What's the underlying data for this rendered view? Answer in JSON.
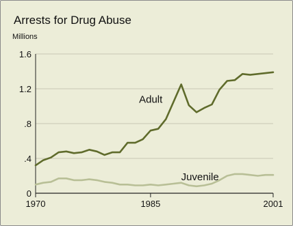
{
  "chart_data": {
    "type": "line",
    "title": "Arrests for Drug Abuse",
    "unit_label": "Millions",
    "xlabel": "",
    "ylabel": "",
    "xlim": [
      1970,
      2001
    ],
    "ylim": [
      0,
      1.6
    ],
    "x_tick_labels": [
      {
        "value": 1970,
        "label": "1970"
      },
      {
        "value": 1985,
        "label": "1985"
      },
      {
        "value": 2001,
        "label": "2001"
      }
    ],
    "y_tick_labels": [
      {
        "value": 0,
        "label": "0"
      },
      {
        "value": 0.4,
        "label": ".4"
      },
      {
        "value": 0.8,
        "label": ".8"
      },
      {
        "value": 1.2,
        "label": "1.2"
      },
      {
        "value": 1.6,
        "label": "1.6"
      }
    ],
    "grid": "horizontal",
    "x": [
      1970,
      1971,
      1972,
      1973,
      1974,
      1975,
      1976,
      1977,
      1978,
      1979,
      1980,
      1981,
      1982,
      1983,
      1984,
      1985,
      1986,
      1987,
      1988,
      1989,
      1990,
      1991,
      1992,
      1993,
      1994,
      1995,
      1996,
      1997,
      1998,
      1999,
      2000,
      2001
    ],
    "series": [
      {
        "name": "Adult",
        "color": "#5f6b2b",
        "values": [
          0.32,
          0.38,
          0.41,
          0.47,
          0.48,
          0.46,
          0.47,
          0.5,
          0.48,
          0.44,
          0.47,
          0.47,
          0.58,
          0.58,
          0.62,
          0.72,
          0.74,
          0.85,
          1.05,
          1.25,
          1.01,
          0.93,
          0.98,
          1.02,
          1.19,
          1.29,
          1.3,
          1.37,
          1.36,
          1.37,
          1.38,
          1.39
        ]
      },
      {
        "name": "Juvenile",
        "color": "#b8bf96",
        "values": [
          0.1,
          0.12,
          0.13,
          0.17,
          0.17,
          0.15,
          0.15,
          0.16,
          0.15,
          0.13,
          0.12,
          0.1,
          0.1,
          0.09,
          0.09,
          0.1,
          0.09,
          0.1,
          0.11,
          0.12,
          0.09,
          0.08,
          0.09,
          0.11,
          0.15,
          0.2,
          0.22,
          0.22,
          0.21,
          0.2,
          0.21,
          0.21
        ]
      }
    ]
  }
}
